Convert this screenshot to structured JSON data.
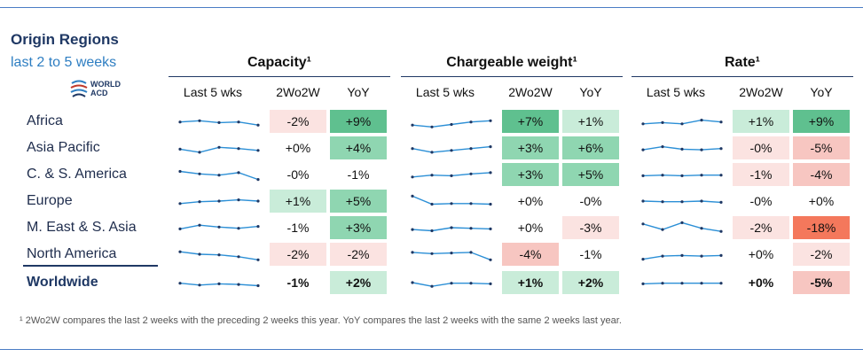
{
  "header": {
    "title": "Origin Regions",
    "subtitle": "last 2 to 5 weeks",
    "logo_text": "WORLD ACD"
  },
  "column_labels": {
    "spark": "Last 5 wks",
    "two_wo_two": "2Wo2W",
    "yoy": "YoY"
  },
  "groups": [
    {
      "title": "Capacity¹"
    },
    {
      "title": "Chargeable weight¹"
    },
    {
      "title": "Rate¹"
    }
  ],
  "rows": [
    "Africa",
    "Asia Pacific",
    "C. & S. America",
    "Europe",
    "M. East & S. Asia",
    "North America",
    "Worldwide"
  ],
  "colors": {
    "positive_strong": "#5fc08f",
    "positive_mid": "#8fd6b1",
    "positive_light": "#c9ecd9",
    "negative_light": "#fbe3e1",
    "negative_mid": "#f7c6c1",
    "negative_strong": "#f4785c",
    "neutral": "#ffffff",
    "sparkline": "#2b8fd6"
  },
  "chart_data": {
    "type": "table",
    "title": "Origin Regions",
    "columns": [
      "Capacity 2Wo2W",
      "Capacity YoY",
      "Chargeable weight 2Wo2W",
      "Chargeable weight YoY",
      "Rate 2Wo2W",
      "Rate YoY"
    ],
    "cells": [
      [
        "-2%",
        "+9%",
        "+7%",
        "+1%",
        "+1%",
        "+9%"
      ],
      [
        "+0%",
        "+4%",
        "+3%",
        "+6%",
        "-0%",
        "-5%"
      ],
      [
        "-0%",
        "-1%",
        "+3%",
        "+5%",
        "-1%",
        "-4%"
      ],
      [
        "+1%",
        "+5%",
        "+0%",
        "-0%",
        "-0%",
        "+0%"
      ],
      [
        "-1%",
        "+3%",
        "+0%",
        "-3%",
        "-2%",
        "-18%"
      ],
      [
        "-2%",
        "-2%",
        "-4%",
        "-1%",
        "+0%",
        "-2%"
      ],
      [
        "-1%",
        "+2%",
        "+1%",
        "+2%",
        "+0%",
        "-5%"
      ]
    ],
    "sparklines": {
      "capacity": [
        [
          0.55,
          0.45,
          0.6,
          0.55,
          0.8
        ],
        [
          0.6,
          0.85,
          0.45,
          0.55,
          0.7
        ],
        [
          0.25,
          0.45,
          0.55,
          0.35,
          0.9
        ],
        [
          0.7,
          0.55,
          0.5,
          0.4,
          0.5
        ],
        [
          0.6,
          0.3,
          0.45,
          0.55,
          0.4
        ],
        [
          0.3,
          0.5,
          0.55,
          0.7,
          0.95
        ],
        [
          0.55,
          0.7,
          0.6,
          0.65,
          0.75
        ]
      ],
      "chargeable_weight": [
        [
          0.8,
          0.95,
          0.75,
          0.55,
          0.45
        ],
        [
          0.55,
          0.85,
          0.7,
          0.55,
          0.4
        ],
        [
          0.7,
          0.55,
          0.6,
          0.45,
          0.35
        ],
        [
          0.1,
          0.75,
          0.7,
          0.7,
          0.75
        ],
        [
          0.65,
          0.75,
          0.5,
          0.55,
          0.6
        ],
        [
          0.35,
          0.45,
          0.4,
          0.35,
          0.95
        ],
        [
          0.5,
          0.8,
          0.55,
          0.55,
          0.6
        ]
      ],
      "rate": [
        [
          0.7,
          0.6,
          0.7,
          0.4,
          0.55
        ],
        [
          0.65,
          0.4,
          0.6,
          0.65,
          0.55
        ],
        [
          0.6,
          0.55,
          0.6,
          0.55,
          0.55
        ],
        [
          0.5,
          0.55,
          0.55,
          0.5,
          0.6
        ],
        [
          0.2,
          0.65,
          0.1,
          0.55,
          0.8
        ],
        [
          0.9,
          0.65,
          0.6,
          0.65,
          0.6
        ],
        [
          0.6,
          0.55,
          0.55,
          0.55,
          0.55
        ]
      ]
    },
    "cell_shades": [
      [
        "negative_light",
        "positive_strong",
        "positive_strong",
        "positive_light",
        "positive_light",
        "positive_strong"
      ],
      [
        "neutral",
        "positive_mid",
        "positive_mid",
        "positive_mid",
        "negative_light",
        "negative_mid"
      ],
      [
        "neutral",
        "neutral",
        "positive_mid",
        "positive_mid",
        "negative_light",
        "negative_mid"
      ],
      [
        "positive_light",
        "positive_mid",
        "neutral",
        "neutral",
        "neutral",
        "neutral"
      ],
      [
        "neutral",
        "positive_mid",
        "neutral",
        "negative_light",
        "negative_light",
        "negative_strong"
      ],
      [
        "negative_light",
        "negative_light",
        "negative_mid",
        "neutral",
        "neutral",
        "negative_light"
      ],
      [
        "neutral",
        "positive_light",
        "positive_light",
        "positive_light",
        "neutral",
        "negative_mid"
      ]
    ]
  },
  "footnote": "¹ 2Wo2W compares the last 2 weeks with the preceding 2 weeks this year. YoY compares the last 2 weeks with the same 2 weeks last year."
}
